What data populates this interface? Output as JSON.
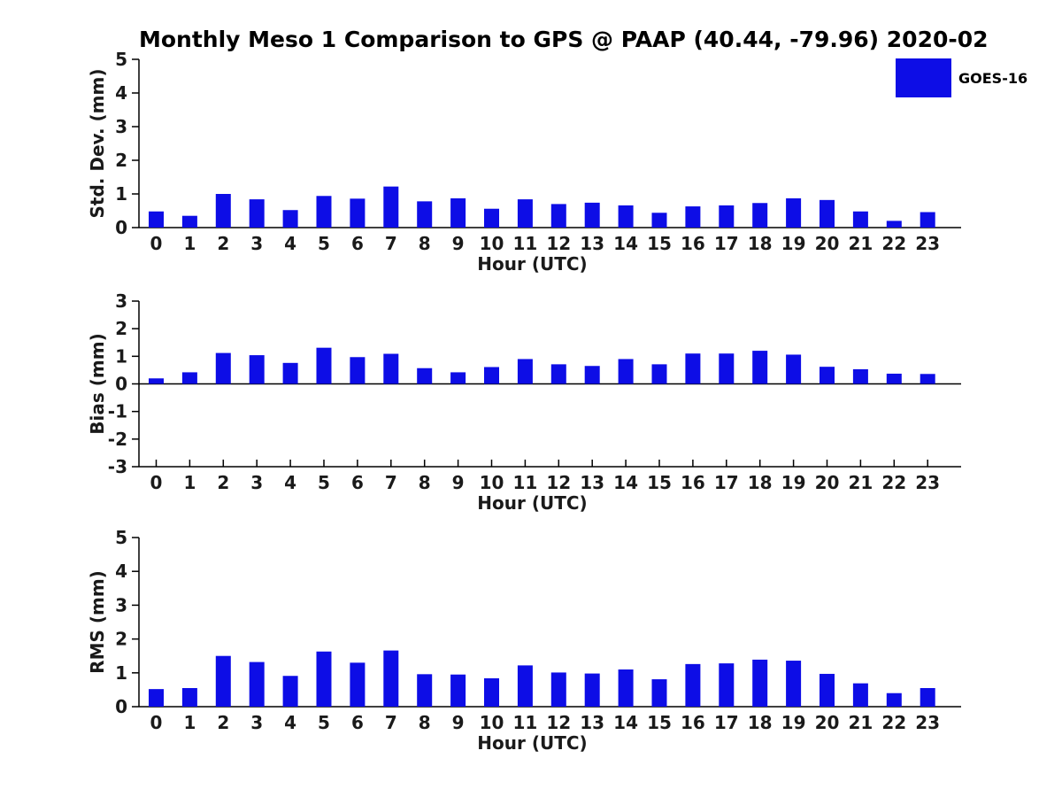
{
  "title": "Monthly Meso 1 Comparison to GPS @ PAAP (40.44, -79.96) 2020-02",
  "legend": {
    "label": "GOES-16",
    "color": "#0d0de6"
  },
  "colors": {
    "bar": "#0d0de6",
    "axis": "#000000",
    "text": "#1a1a1a",
    "background": "#ffffff"
  },
  "xlabel": "Hour (UTC)",
  "chart_data": [
    {
      "type": "bar",
      "name": "std-dev",
      "title": "",
      "xlabel": "Hour (UTC)",
      "ylabel": "Std. Dev. (mm)",
      "ylim": [
        0,
        5
      ],
      "yticks": [
        0,
        1,
        2,
        3,
        4,
        5
      ],
      "legend": [
        "GOES-16"
      ],
      "legend_position": "upper right",
      "grid": false,
      "categories": [
        "0",
        "1",
        "2",
        "3",
        "4",
        "5",
        "6",
        "7",
        "8",
        "9",
        "10",
        "11",
        "12",
        "13",
        "14",
        "15",
        "16",
        "17",
        "18",
        "19",
        "20",
        "21",
        "22",
        "23"
      ],
      "values": [
        0.48,
        0.35,
        1.0,
        0.84,
        0.52,
        0.94,
        0.86,
        1.22,
        0.78,
        0.87,
        0.56,
        0.84,
        0.7,
        0.74,
        0.66,
        0.44,
        0.63,
        0.66,
        0.73,
        0.87,
        0.82,
        0.48,
        0.2,
        0.46
      ]
    },
    {
      "type": "bar",
      "name": "bias",
      "title": "",
      "xlabel": "Hour (UTC)",
      "ylabel": "Bias (mm)",
      "ylim": [
        -3,
        3
      ],
      "yticks": [
        -3,
        -2,
        -1,
        0,
        1,
        2,
        3
      ],
      "grid": false,
      "categories": [
        "0",
        "1",
        "2",
        "3",
        "4",
        "5",
        "6",
        "7",
        "8",
        "9",
        "10",
        "11",
        "12",
        "13",
        "14",
        "15",
        "16",
        "17",
        "18",
        "19",
        "20",
        "21",
        "22",
        "23"
      ],
      "values": [
        0.2,
        0.42,
        1.12,
        1.04,
        0.76,
        1.31,
        0.97,
        1.09,
        0.57,
        0.42,
        0.61,
        0.9,
        0.71,
        0.65,
        0.9,
        0.71,
        1.1,
        1.1,
        1.2,
        1.06,
        0.62,
        0.53,
        0.37,
        0.36
      ]
    },
    {
      "type": "bar",
      "name": "rms",
      "title": "",
      "xlabel": "Hour (UTC)",
      "ylabel": "RMS (mm)",
      "ylim": [
        0,
        5
      ],
      "yticks": [
        0,
        1,
        2,
        3,
        4,
        5
      ],
      "grid": false,
      "categories": [
        "0",
        "1",
        "2",
        "3",
        "4",
        "5",
        "6",
        "7",
        "8",
        "9",
        "10",
        "11",
        "12",
        "13",
        "14",
        "15",
        "16",
        "17",
        "18",
        "19",
        "20",
        "21",
        "22",
        "23"
      ],
      "values": [
        0.52,
        0.55,
        1.5,
        1.32,
        0.91,
        1.63,
        1.3,
        1.66,
        0.96,
        0.95,
        0.84,
        1.22,
        1.01,
        0.98,
        1.1,
        0.81,
        1.26,
        1.28,
        1.39,
        1.36,
        0.97,
        0.69,
        0.4,
        0.55
      ]
    }
  ]
}
